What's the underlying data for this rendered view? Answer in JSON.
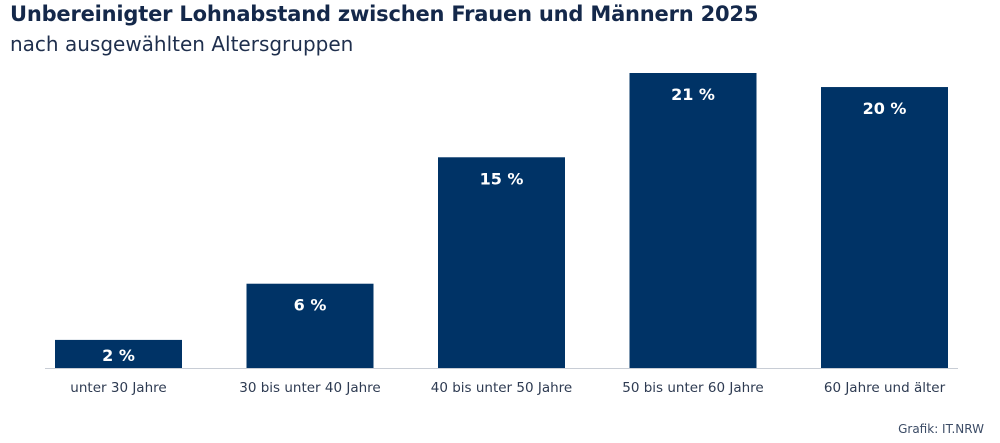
{
  "chart_data": {
    "type": "bar",
    "title": "Unbereinigter Lohnabstand zwischen Frauen und Männern 2025",
    "subtitle": "nach ausgewählten Altersgruppen",
    "categories": [
      "unter 30 Jahre",
      "30 bis unter 40 Jahre",
      "40 bis unter 50 Jahre",
      "50 bis unter 60 Jahre",
      "60 Jahre und älter"
    ],
    "values": [
      2,
      6,
      15,
      21,
      20
    ],
    "data_labels": [
      "2 %",
      "6 %",
      "15 %",
      "21 %",
      "20 %"
    ],
    "unit": "%",
    "xlabel": "",
    "ylabel": "",
    "ylim": [
      0,
      21
    ],
    "grid": false,
    "legend": "none",
    "bar_color": "#003366",
    "label_color": "#ffffff"
  },
  "footer": {
    "credit": "Grafik: IT.NRW"
  }
}
